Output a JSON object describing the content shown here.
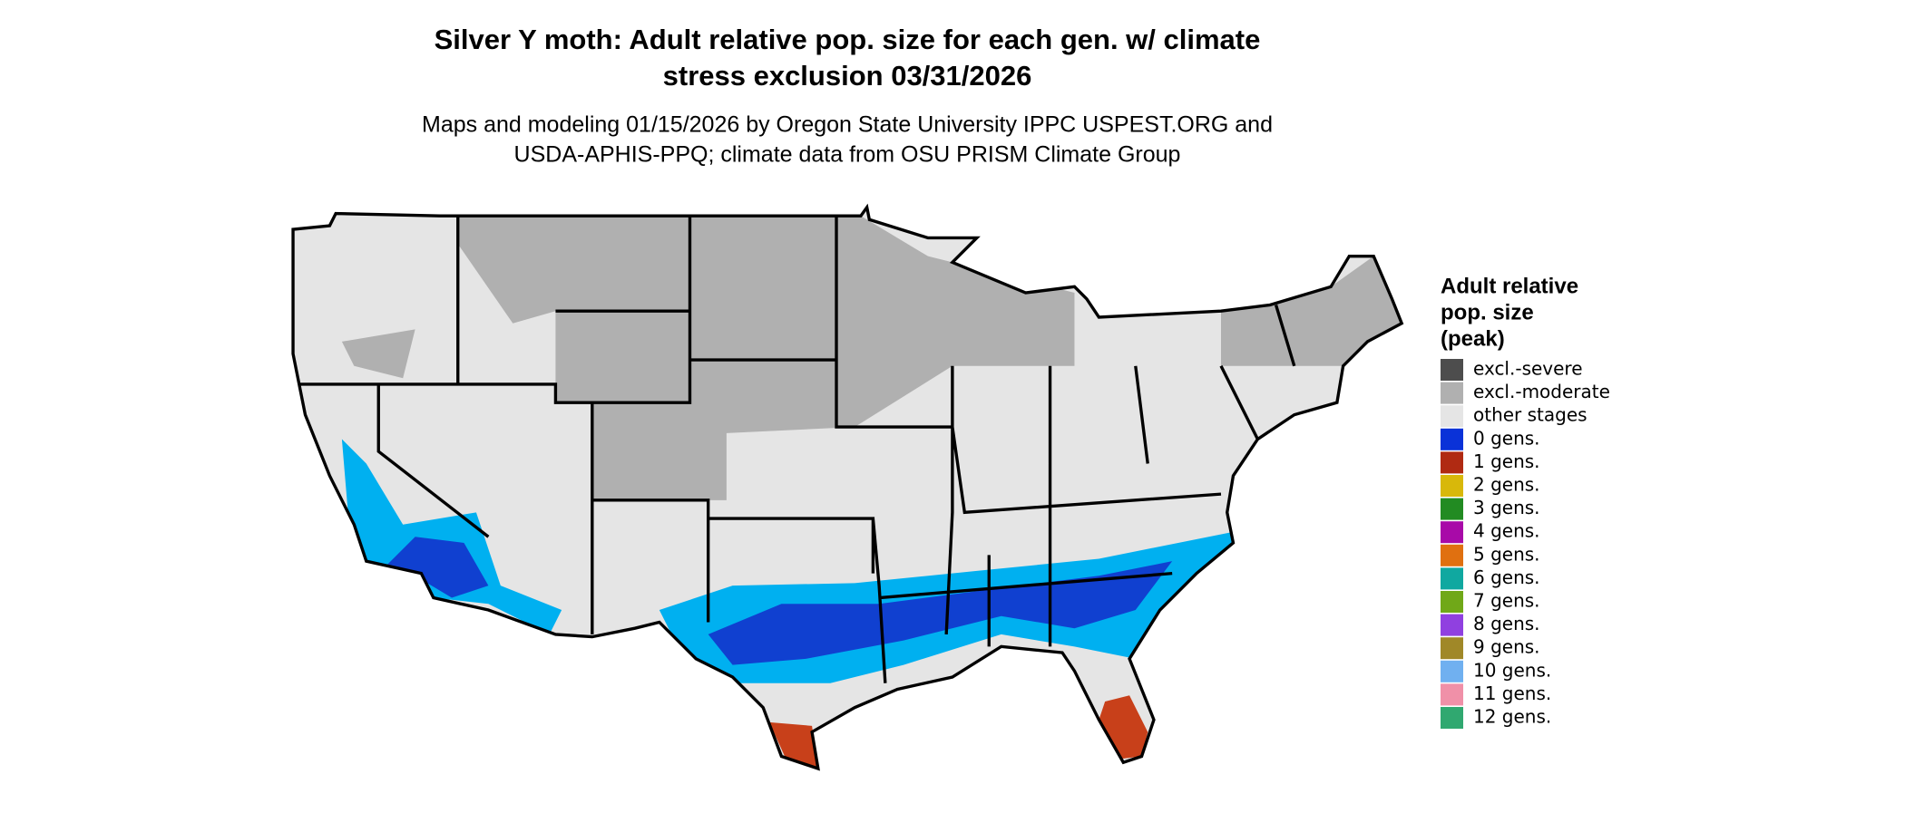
{
  "title": [
    "Silver Y moth: Adult relative pop. size for each gen. w/ climate",
    "stress exclusion 03/31/2026"
  ],
  "subtitle": [
    "Maps and modeling 01/15/2026 by Oregon State University IPPC USPEST.ORG and",
    "USDA-APHIS-PPQ; climate data from OSU PRISM Climate Group"
  ],
  "legend": {
    "title": [
      "Adult relative",
      "pop. size",
      "(peak)"
    ],
    "items": [
      {
        "label": "excl.-severe",
        "color": "#4d4d4d"
      },
      {
        "label": "excl.-moderate",
        "color": "#b0b0b0"
      },
      {
        "label": "other stages",
        "color": "#e5e5e5"
      },
      {
        "label": "0 gens.",
        "color": "#0a32d8"
      },
      {
        "label": "1 gens.",
        "color": "#b02a12"
      },
      {
        "label": "2 gens.",
        "color": "#d8b80a"
      },
      {
        "label": "3 gens.",
        "color": "#228b22"
      },
      {
        "label": "4 gens.",
        "color": "#a80aa8"
      },
      {
        "label": "5 gens.",
        "color": "#e07010"
      },
      {
        "label": "6 gens.",
        "color": "#10a8a0"
      },
      {
        "label": "7 gens.",
        "color": "#70a818"
      },
      {
        "label": "8 gens.",
        "color": "#9040e0"
      },
      {
        "label": "9 gens.",
        "color": "#a08828"
      },
      {
        "label": "10 gens.",
        "color": "#70b0f0"
      },
      {
        "label": "11 gens.",
        "color": "#f090a8"
      },
      {
        "label": "12 gens.",
        "color": "#30a870"
      }
    ]
  }
}
